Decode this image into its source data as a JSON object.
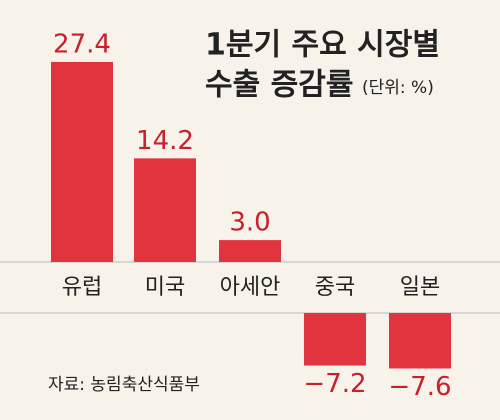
{
  "chart_data": {
    "type": "bar",
    "title": "1분기 주요 시장별",
    "subtitle": "수출 증감률",
    "unit": "(단위: %)",
    "source": "자료: 농림축산식품부",
    "categories": [
      "유럽",
      "미국",
      "아세안",
      "중국",
      "일본"
    ],
    "values": [
      27.4,
      14.2,
      3.0,
      -7.2,
      -7.6
    ],
    "value_labels": [
      "27.4",
      "14.2",
      "3.0",
      "−7.2",
      "−7.6"
    ],
    "color": "#e2343f"
  }
}
